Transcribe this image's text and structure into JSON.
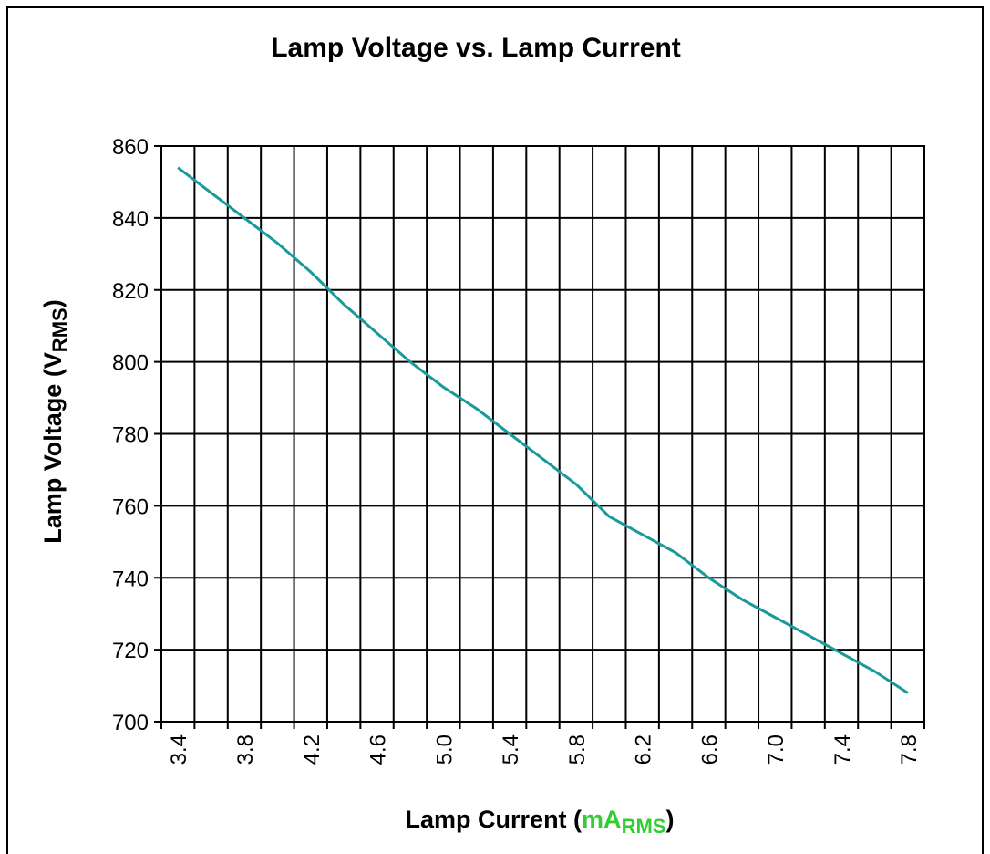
{
  "chart_data": {
    "type": "line",
    "title": "Lamp Voltage vs. Lamp Current",
    "xlabel": [
      "Lamp Current (",
      "mA",
      "RMS",
      ")"
    ],
    "xlabel_highlight_color": "#33cc33",
    "ylabel": [
      "Lamp Voltage (V",
      "RMS",
      ")"
    ],
    "categories": [
      "3.4",
      null,
      "3.8",
      null,
      "4.2",
      null,
      "4.6",
      null,
      "5.0",
      null,
      "5.4",
      null,
      "5.8",
      null,
      "6.2",
      null,
      "6.6",
      null,
      "7.0",
      null,
      "7.4",
      null,
      "7.8"
    ],
    "series": [
      {
        "name": "Lamp Voltage",
        "color": "#1a9a9a",
        "values": [
          854,
          847,
          840,
          833,
          825,
          816,
          808,
          800,
          793,
          787,
          780,
          773,
          766,
          757,
          752,
          747,
          740,
          734,
          729,
          724,
          719,
          714,
          708
        ]
      }
    ],
    "ylim": [
      700,
      860
    ],
    "yticks": [
      700,
      720,
      740,
      760,
      780,
      800,
      820,
      840,
      860
    ],
    "grid": true
  }
}
